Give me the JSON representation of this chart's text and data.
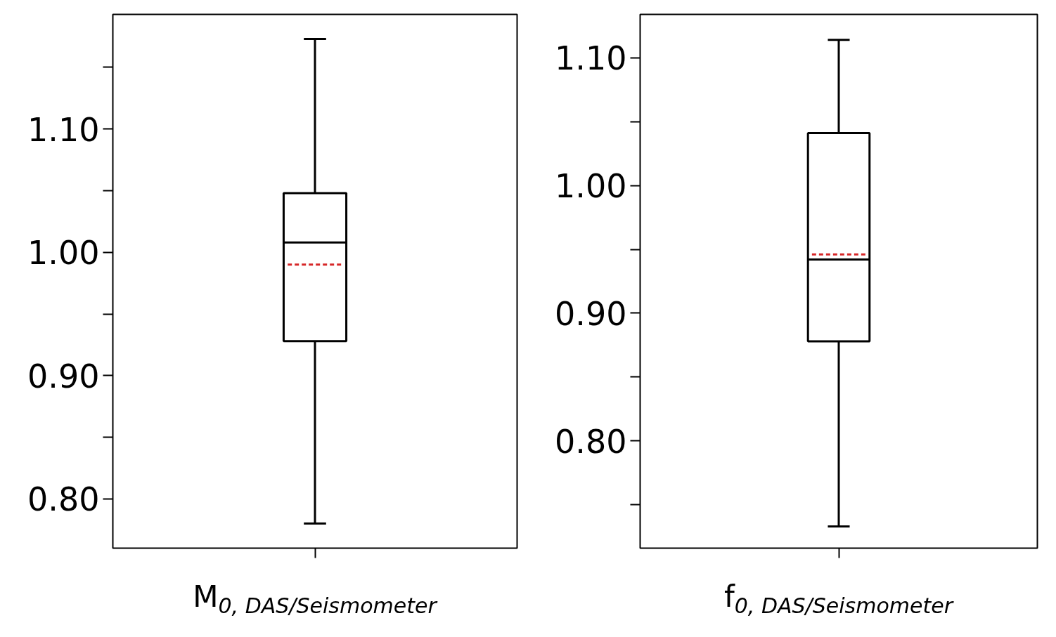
{
  "chart_data": [
    {
      "type": "box",
      "categories": [
        "M$_{0, DAS/Seismometer}$"
      ],
      "boxes": [
        {
          "low": 0.78,
          "q1": 0.928,
          "median": 1.008,
          "q3": 1.048,
          "high": 1.173,
          "mean": 0.99
        }
      ],
      "ylim": [
        0.76,
        1.193
      ],
      "yticks": [
        {
          "value": 0.8,
          "label": "0.80"
        },
        {
          "value": 0.85,
          "label": null
        },
        {
          "value": 0.9,
          "label": "0.90"
        },
        {
          "value": 0.95,
          "label": null
        },
        {
          "value": 1.0,
          "label": "1.00"
        },
        {
          "value": 1.05,
          "label": null
        },
        {
          "value": 1.1,
          "label": "1.10"
        },
        {
          "value": 1.15,
          "label": null
        }
      ],
      "grid": false
    },
    {
      "type": "box",
      "categories": [
        "f$_{0, DAS/Seismometer}$"
      ],
      "boxes": [
        {
          "low": 0.733,
          "q1": 0.878,
          "median": 0.942,
          "q3": 1.041,
          "high": 1.114,
          "mean": 0.946
        }
      ],
      "ylim": [
        0.716,
        1.134
      ],
      "yticks": [
        {
          "value": 0.75,
          "label": null
        },
        {
          "value": 0.8,
          "label": "0.80"
        },
        {
          "value": 0.85,
          "label": null
        },
        {
          "value": 0.9,
          "label": "0.90"
        },
        {
          "value": 0.95,
          "label": null
        },
        {
          "value": 1.0,
          "label": "1.00"
        },
        {
          "value": 1.05,
          "label": null
        },
        {
          "value": 1.1,
          "label": "1.10"
        }
      ],
      "grid": false
    }
  ]
}
